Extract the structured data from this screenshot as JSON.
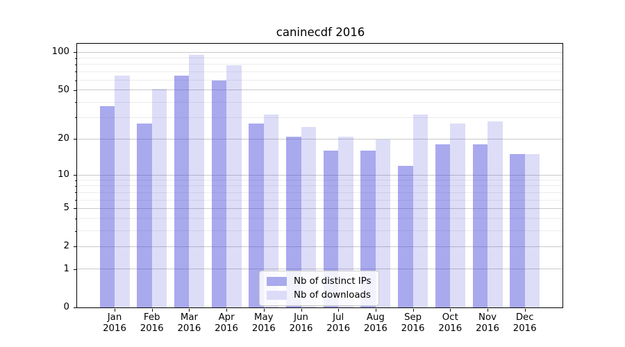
{
  "chart_data": {
    "type": "bar",
    "title": "caninecdf 2016",
    "categories": [
      "Jan 2016",
      "Feb 2016",
      "Mar 2016",
      "Apr 2016",
      "May 2016",
      "Jun 2016",
      "Jul 2016",
      "Aug 2016",
      "Sep 2016",
      "Oct 2016",
      "Nov 2016",
      "Dec 2016"
    ],
    "series": [
      {
        "name": "Nb of distinct IPs",
        "color_hex": "#a9a9ee",
        "fill_rgba": "rgba(64,64,217,0.45)",
        "values": [
          37,
          27,
          65,
          60,
          27,
          21,
          16,
          16,
          12,
          18,
          18,
          15
        ]
      },
      {
        "name": "Nb of downloads",
        "color_hex": "#dcdcf8",
        "fill_rgba": "rgba(64,64,217,0.18)",
        "values": [
          65,
          51,
          95,
          79,
          32,
          25,
          21,
          20,
          32,
          27,
          28,
          15
        ]
      }
    ],
    "xlabel": "",
    "ylabel": "",
    "yscale": "log1p",
    "yticks": [
      0,
      1,
      2,
      5,
      10,
      20,
      50,
      100
    ],
    "minor_yticks": [
      3,
      4,
      6,
      7,
      8,
      9,
      30,
      40,
      60,
      70,
      80,
      90
    ],
    "ylim": [
      0,
      117
    ],
    "grid": true,
    "legend_position": "lower center",
    "colors": {
      "major_grid": "#c9c9c9",
      "minor_grid": "#ececec",
      "axis": "#000000",
      "background": "#ffffff"
    }
  }
}
